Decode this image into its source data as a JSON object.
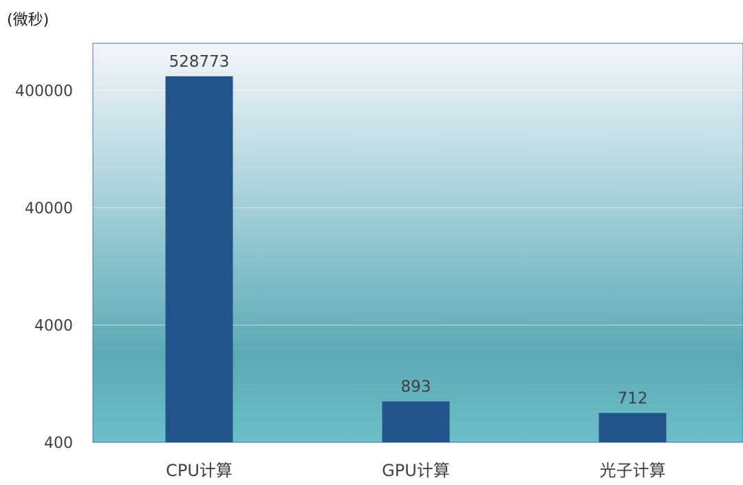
{
  "chart_data": {
    "type": "bar",
    "unit_label": "(微秒)",
    "y_scale": "log",
    "ylim": [
      400,
      1200000
    ],
    "y_ticks": [
      400,
      4000,
      40000,
      400000
    ],
    "y_tick_labels": [
      "400",
      "4000",
      "40000",
      "400000"
    ],
    "categories": [
      "CPU计算",
      "GPU计算",
      "光子计算"
    ],
    "values": [
      528773,
      893,
      712
    ],
    "data_labels": [
      "528773",
      "893",
      "712"
    ],
    "grid": true,
    "legend": "none"
  },
  "colors": {
    "bar": "#23548c",
    "plot_gradient_top": "#f3f6fb",
    "plot_gradient_mid": "#5aaab6",
    "plot_gradient_bottom": "#6bbec9",
    "plot_border": "#4a72b0",
    "gridline": "#ffffff"
  }
}
